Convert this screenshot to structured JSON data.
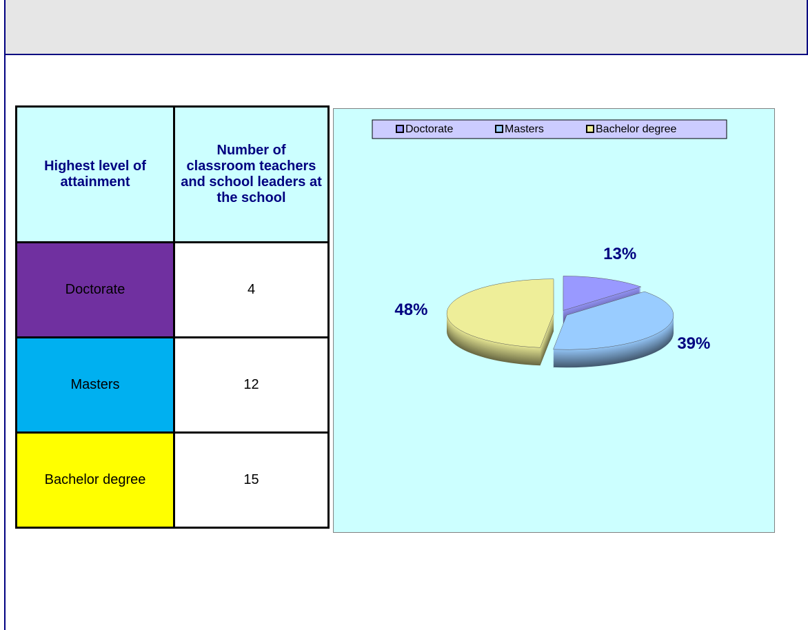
{
  "table": {
    "headers": [
      "Highest level of attainment",
      "Number of classroom teachers and school leaders at the school"
    ],
    "rows": [
      [
        "Doctorate",
        "4"
      ],
      [
        "Masters",
        "12"
      ],
      [
        "Bachelor degree",
        "15"
      ]
    ]
  },
  "chart_data": {
    "type": "pie",
    "categories": [
      "Doctorate",
      "Masters",
      "Bachelor degree"
    ],
    "values": [
      13,
      39,
      48
    ],
    "value_labels": [
      "13%",
      "39%",
      "48%"
    ],
    "colors": [
      "#9999ff",
      "#99ccff",
      "#eeee99"
    ],
    "legend": "top"
  }
}
